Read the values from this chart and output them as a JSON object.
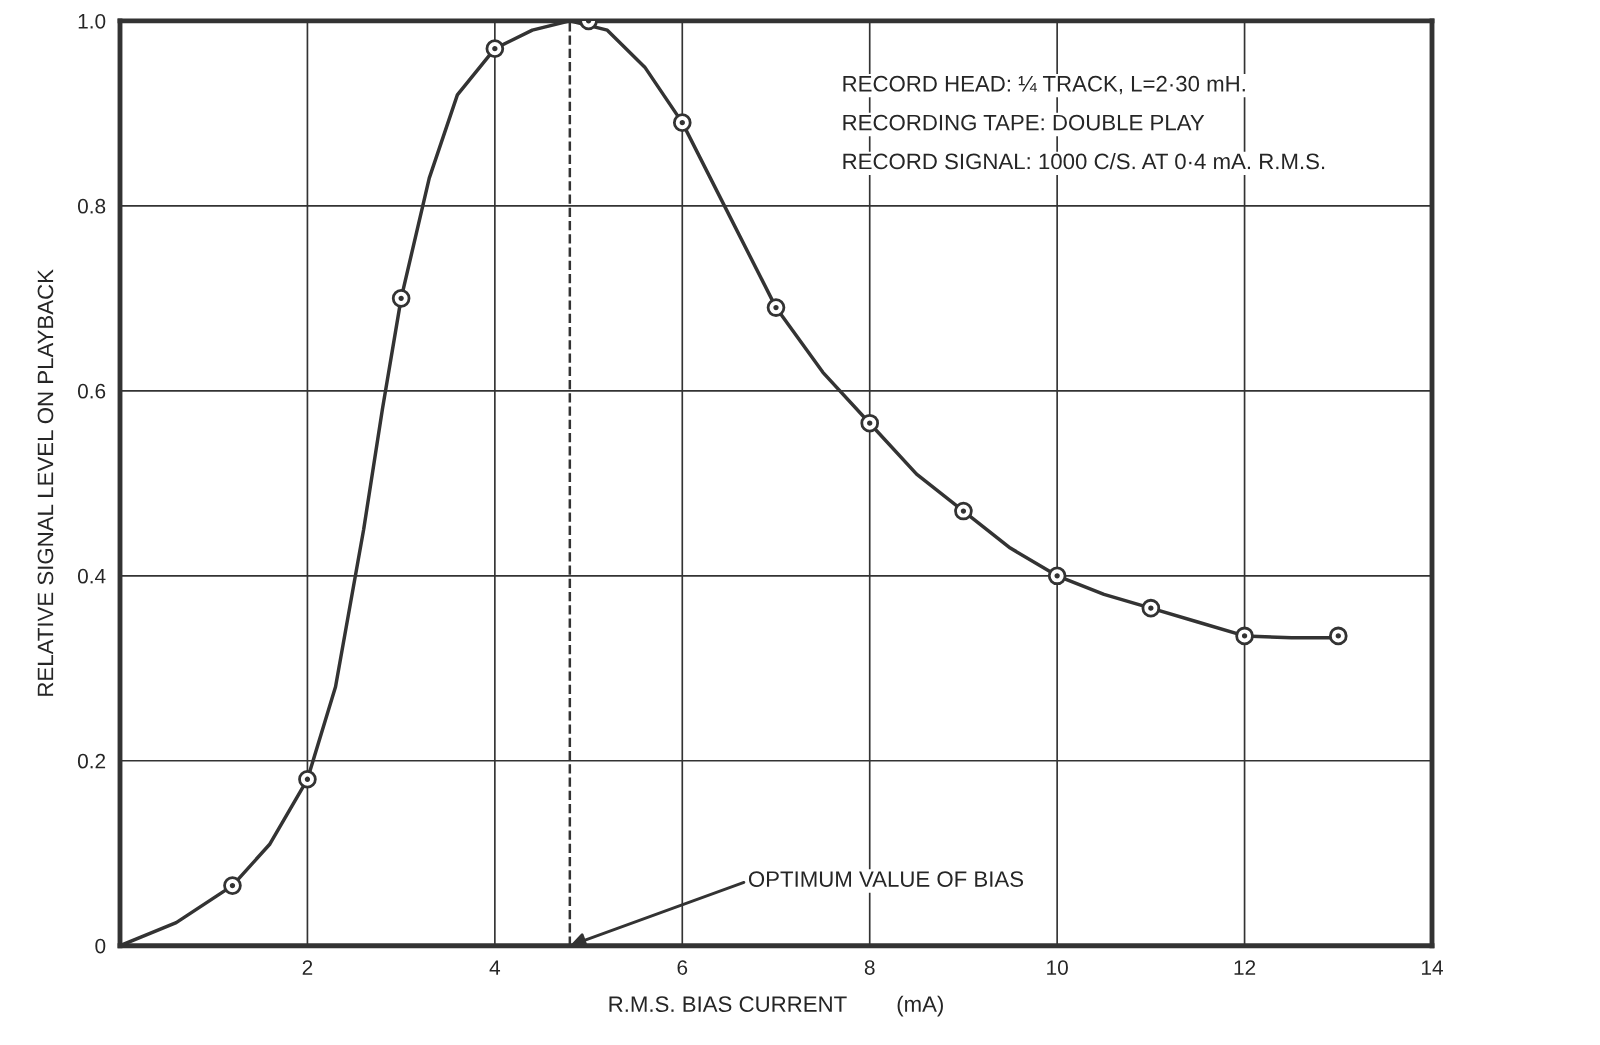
{
  "chart_data": {
    "type": "line",
    "xlabel": "R.M.S. BIAS CURRENT        (mA)",
    "ylabel": "RELATIVE SIGNAL LEVEL ON PLAYBACK",
    "xlim": [
      0,
      14
    ],
    "xticks": [
      2,
      4,
      6,
      8,
      10,
      12,
      14
    ],
    "ylim": [
      0,
      1.0
    ],
    "yticks": [
      0,
      0.2,
      0.4,
      0.6,
      0.8,
      {
        "value": 1.0,
        "label": "1.0"
      }
    ],
    "grid": true,
    "series": [
      {
        "color": "#333333",
        "marker": "none",
        "line_style": "solid",
        "x": [
          0,
          0.6,
          1.2,
          1.6,
          2,
          2.3,
          2.6,
          2.8,
          3,
          3.3,
          3.6,
          4,
          4.4,
          4.8,
          5.2,
          5.6,
          6,
          6.5,
          7,
          7.5,
          8,
          8.5,
          9,
          9.5,
          10,
          10.5,
          11,
          11.5,
          12,
          12.5,
          13
        ],
        "values": [
          0,
          0.025,
          0.065,
          0.11,
          0.18,
          0.28,
          0.45,
          0.58,
          0.7,
          0.83,
          0.92,
          0.97,
          0.99,
          1.0,
          0.99,
          0.95,
          0.89,
          0.79,
          0.69,
          0.62,
          0.565,
          0.51,
          0.47,
          0.43,
          0.4,
          0.38,
          0.365,
          0.35,
          0.335,
          0.333,
          0.333
        ]
      },
      {
        "type": "scatter",
        "color": "#333333",
        "marker": "circle",
        "x": [
          1.2,
          2,
          3,
          4,
          5,
          6,
          7,
          8,
          9,
          10,
          11,
          12,
          13
        ],
        "values": [
          0.065,
          0.18,
          0.7,
          0.97,
          1.0,
          0.89,
          0.69,
          0.565,
          0.47,
          0.4,
          0.365,
          0.335,
          0.335
        ]
      }
    ],
    "ref_lines": [
      {
        "axis": "x",
        "value": 4.8,
        "color": "#333333",
        "line_style": "dashed"
      }
    ],
    "annotations": [
      "RECORD HEAD: ¼ TRACK, L=2·30 mH.",
      "RECORDING TAPE: DOUBLE PLAY",
      "RECORD SIGNAL: 1000 C/S. AT 0·4 mA. R.M.S.",
      {
        "text": "OPTIMUM VALUE OF BIAS",
        "x": 4.8,
        "y": 0
      }
    ]
  }
}
